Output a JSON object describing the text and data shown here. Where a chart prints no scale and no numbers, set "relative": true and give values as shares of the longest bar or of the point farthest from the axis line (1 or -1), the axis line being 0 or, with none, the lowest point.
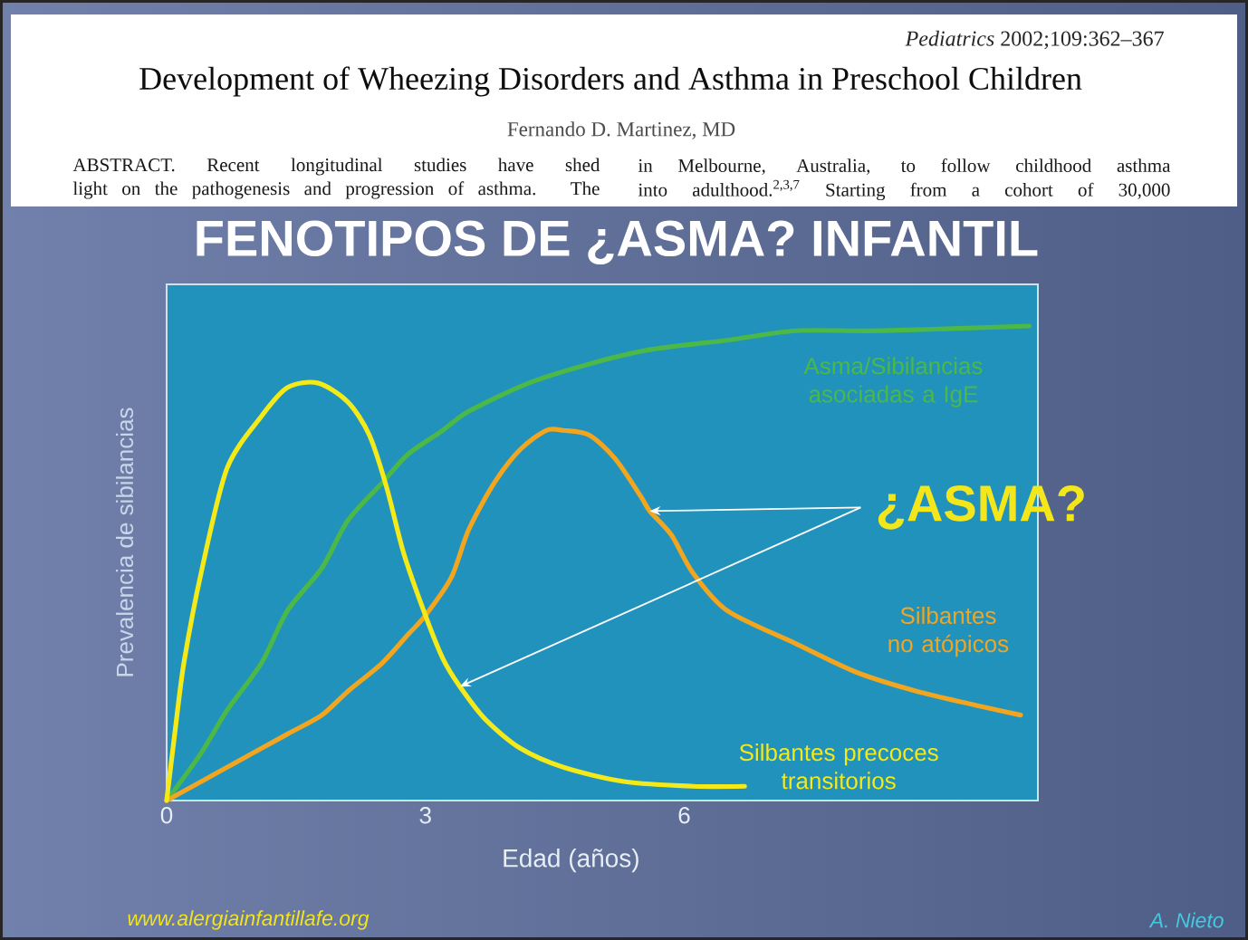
{
  "chart_data": {
    "type": "line",
    "title": "FENOTIPOS DE ¿ASMA? INFANTIL",
    "xlabel": "Edad (años)",
    "ylabel": "Prevalencia de sibilancias",
    "xlim": [
      0,
      10.1
    ],
    "xticks": [
      0,
      3,
      6
    ],
    "relative": true,
    "series": [
      {
        "name": "Asma/Sibilancias asociadas a IgE",
        "color": "#4cb848",
        "x": [
          0,
          0.4,
          0.7,
          1.1,
          1.4,
          1.8,
          2.1,
          2.5,
          2.8,
          3.2,
          3.5,
          4.2,
          4.9,
          5.6,
          6.5,
          7.3,
          8.3,
          10.0
        ],
        "values": [
          0,
          0.1,
          0.19,
          0.29,
          0.4,
          0.49,
          0.59,
          0.67,
          0.73,
          0.78,
          0.82,
          0.88,
          0.92,
          0.95,
          0.97,
          0.99,
          0.99,
          1.0
        ]
      },
      {
        "name": "Silbantes no atópicos",
        "color": "#f2a51f",
        "x": [
          0,
          0.7,
          1.4,
          1.8,
          2.1,
          2.5,
          2.8,
          3.0,
          3.3,
          3.5,
          3.8,
          4.1,
          4.4,
          4.6,
          4.9,
          5.2,
          5.5,
          5.6,
          5.85,
          6.1,
          6.5,
          7.3,
          8.0,
          8.7,
          9.4,
          9.9
        ],
        "values": [
          0,
          0.07,
          0.14,
          0.18,
          0.23,
          0.29,
          0.35,
          0.39,
          0.47,
          0.57,
          0.67,
          0.74,
          0.78,
          0.78,
          0.77,
          0.72,
          0.64,
          0.61,
          0.56,
          0.48,
          0.4,
          0.33,
          0.27,
          0.23,
          0.2,
          0.18
        ]
      },
      {
        "name": "Silbantes precoces transitorios",
        "color": "#f4ea1a",
        "x": [
          0,
          0.1,
          0.2,
          0.4,
          0.7,
          1.1,
          1.4,
          1.75,
          2.1,
          2.35,
          2.55,
          2.75,
          3.0,
          3.2,
          3.4,
          3.7,
          4.1,
          4.6,
          5.3,
          6.1,
          6.7
        ],
        "values": [
          0,
          0.15,
          0.29,
          0.48,
          0.7,
          0.81,
          0.87,
          0.88,
          0.84,
          0.77,
          0.66,
          0.52,
          0.39,
          0.3,
          0.24,
          0.17,
          0.11,
          0.07,
          0.04,
          0.03,
          0.03
        ]
      }
    ],
    "annotations": [
      "*Pediatrics* 2002;109:362–367",
      "Development of Wheezing Disorders and Asthma in Preschool Children",
      "Fernando D. Martinez, MD",
      "ABSTRACT. Recent longitudinal studies have shed",
      "light on the pathogenesis and progression of asthma. The",
      "in Melbourne, Australia, to follow childhood asthma",
      "into adulthood.$^{2,3,7}$ Starting from a cohort of 30,000",
      {
        "text": "¿ASMA?",
        "x": 5.6,
        "y": 0.61
      },
      "www.alergiainfantillafe.org",
      "A. Nieto"
    ]
  }
}
